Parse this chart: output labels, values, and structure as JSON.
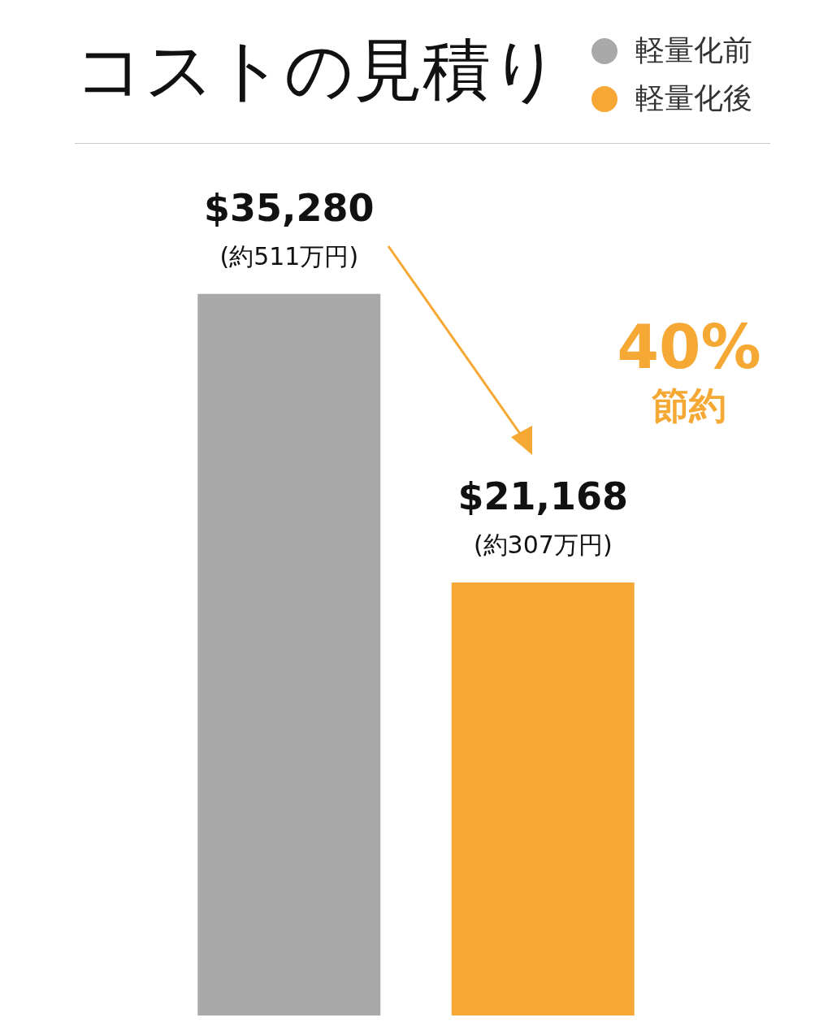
{
  "chart_data": {
    "type": "bar",
    "title": "コストの見積り",
    "categories": [
      null
    ],
    "series": [
      {
        "name": "軽量化前",
        "color": "#a9a9a9",
        "values": [
          35280
        ],
        "value_labels": [
          "$35,280"
        ]
      },
      {
        "name": "軽量化後",
        "color": "#f7a733",
        "values": [
          21168
        ],
        "value_labels": [
          "$21,168"
        ]
      }
    ],
    "annotations": [
      {
        "text": "(約511万円)",
        "y": 35280
      },
      {
        "text": "(約307万円)",
        "y": 21168
      },
      "40%",
      "節約"
    ],
    "legend": "top right"
  }
}
